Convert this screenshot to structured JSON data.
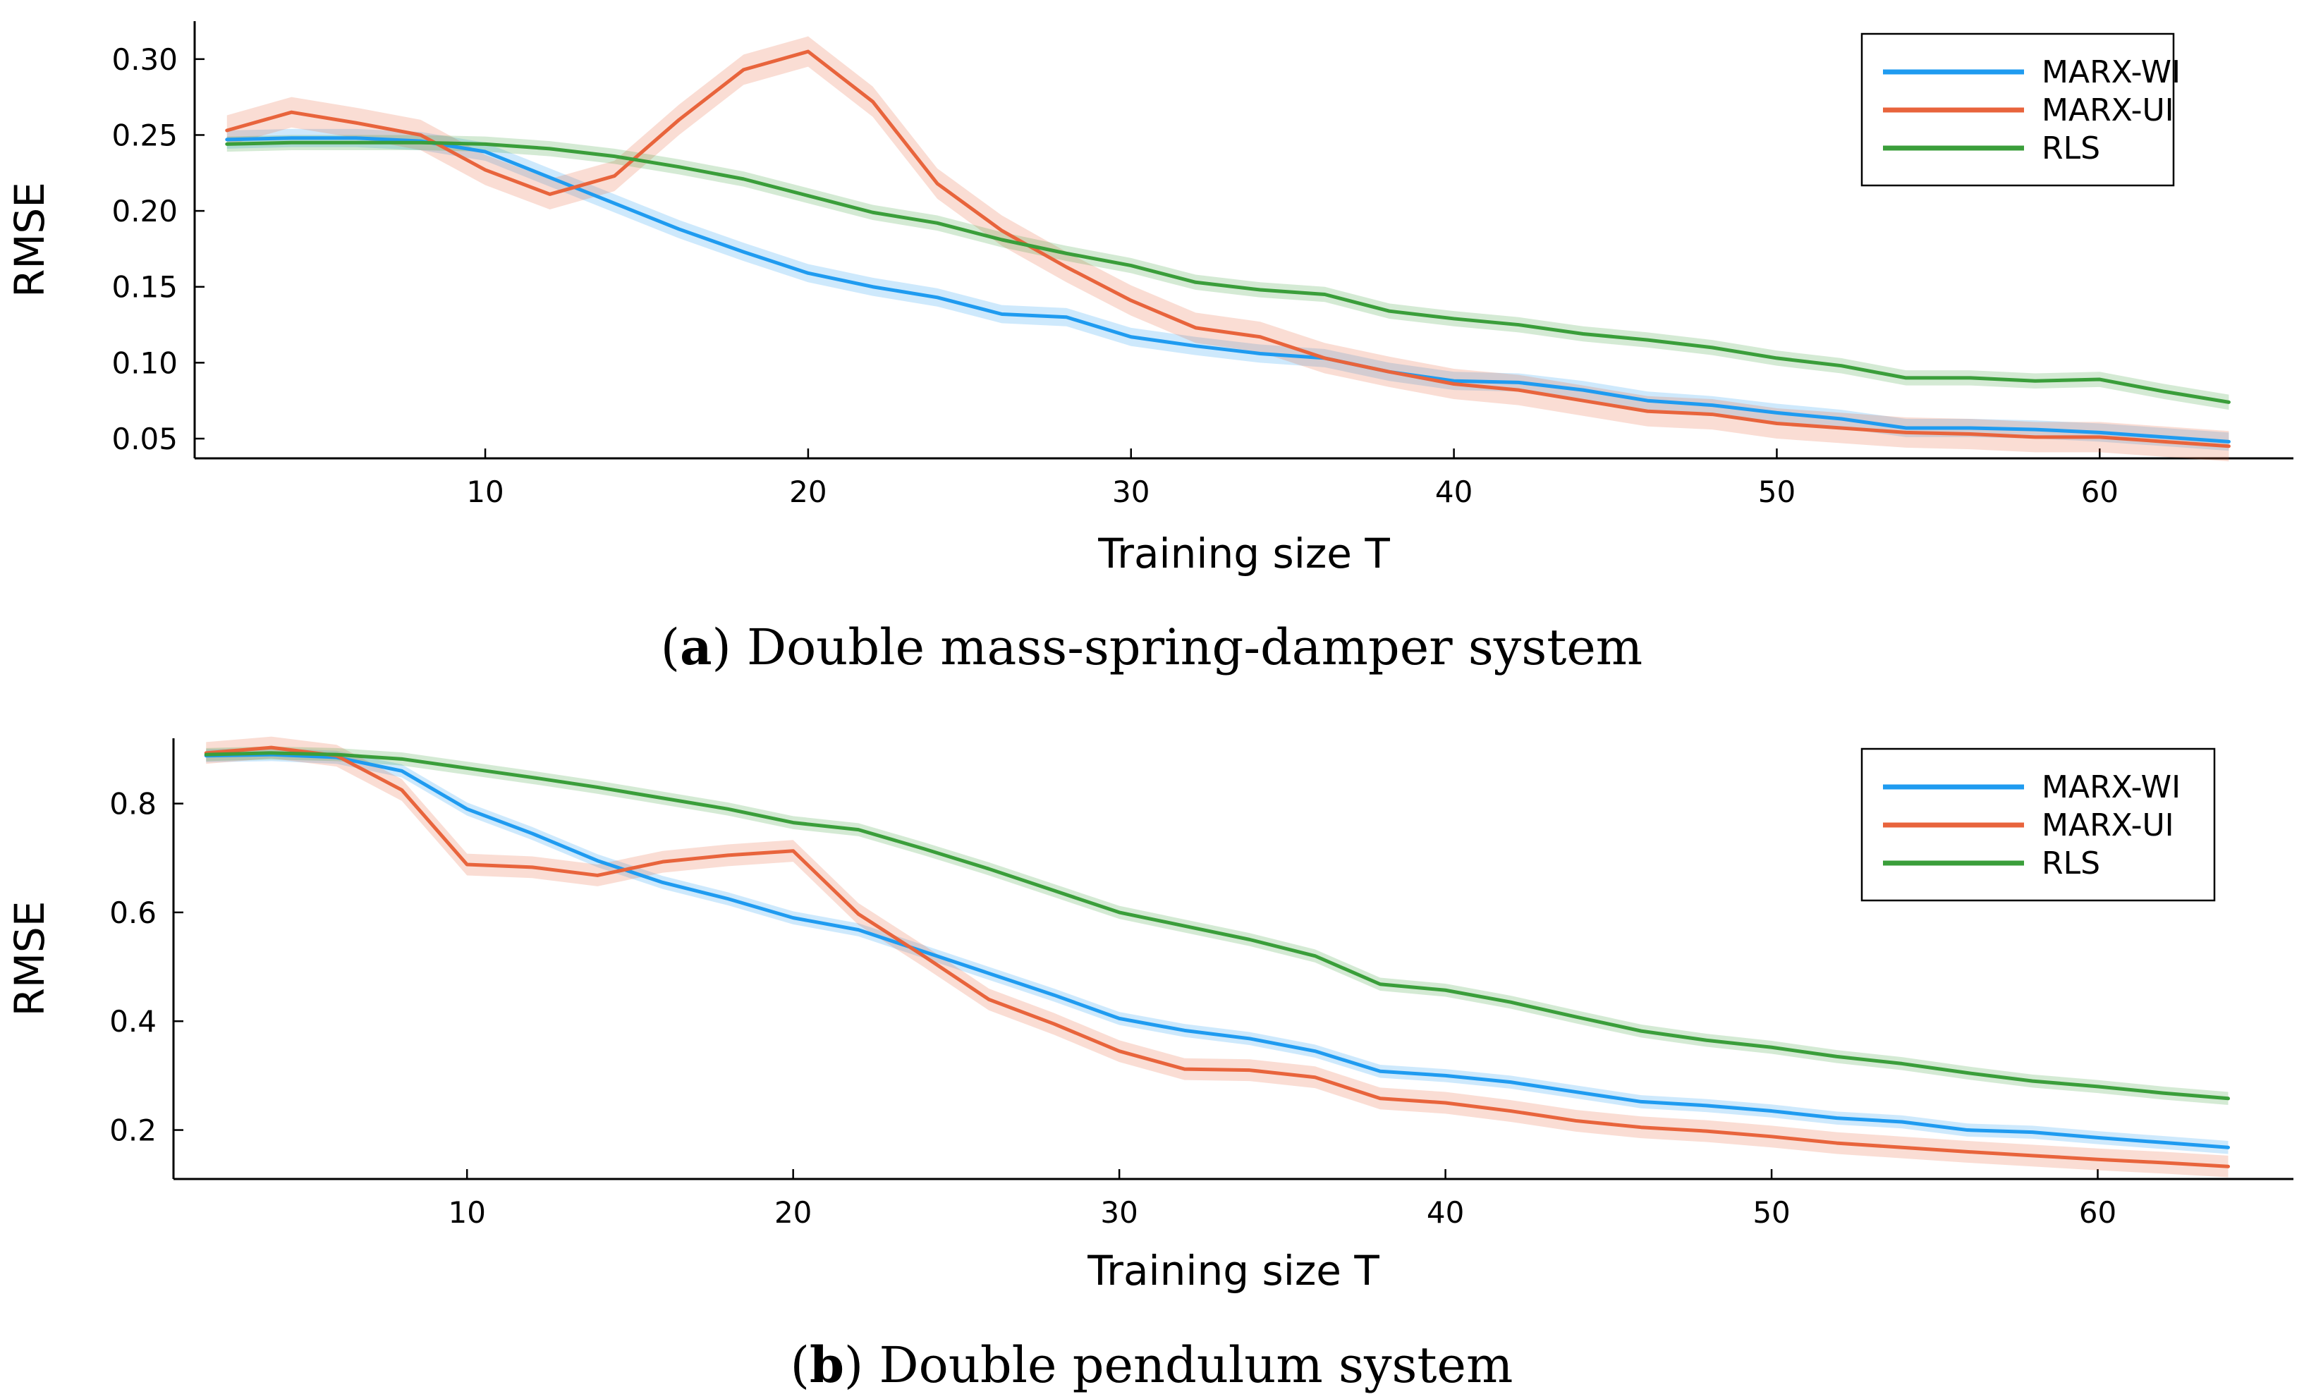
{
  "chart_data": [
    {
      "type": "line",
      "panel_label": "a",
      "title": "Double mass-spring-damper system",
      "xlabel": "Training size T",
      "ylabel": "RMSE",
      "xlim": [
        1,
        66
      ],
      "ylim": [
        0.037,
        0.325
      ],
      "xticks": [
        10,
        20,
        30,
        40,
        50,
        60
      ],
      "yticks": [
        0.05,
        0.1,
        0.15,
        0.2,
        0.25,
        0.3
      ],
      "ytick_labels": [
        "0.05",
        "0.10",
        "0.15",
        "0.20",
        "0.25",
        "0.30"
      ],
      "grid": false,
      "legend_position": "top-right",
      "x": [
        2,
        4,
        6,
        8,
        10,
        12,
        14,
        16,
        18,
        20,
        22,
        24,
        26,
        28,
        30,
        32,
        34,
        36,
        38,
        40,
        42,
        44,
        46,
        48,
        50,
        52,
        54,
        56,
        58,
        60,
        62,
        64
      ],
      "series": [
        {
          "name": "MARX-WI",
          "color": "#1f9bf0",
          "band": 0.006,
          "values": [
            0.247,
            0.248,
            0.248,
            0.246,
            0.239,
            0.222,
            0.205,
            0.188,
            0.173,
            0.159,
            0.15,
            0.143,
            0.132,
            0.13,
            0.117,
            0.111,
            0.106,
            0.103,
            0.094,
            0.088,
            0.087,
            0.082,
            0.075,
            0.072,
            0.067,
            0.063,
            0.057,
            0.057,
            0.056,
            0.054,
            0.051,
            0.048
          ]
        },
        {
          "name": "MARX-UI",
          "color": "#e8643c",
          "band": 0.01,
          "values": [
            0.253,
            0.265,
            0.258,
            0.25,
            0.227,
            0.211,
            0.223,
            0.26,
            0.293,
            0.305,
            0.272,
            0.218,
            0.187,
            0.163,
            0.141,
            0.123,
            0.117,
            0.103,
            0.094,
            0.086,
            0.082,
            0.075,
            0.068,
            0.066,
            0.06,
            0.057,
            0.054,
            0.053,
            0.051,
            0.051,
            0.048,
            0.045
          ]
        },
        {
          "name": "RLS",
          "color": "#3a9e3a",
          "band": 0.005,
          "values": [
            0.244,
            0.245,
            0.245,
            0.245,
            0.244,
            0.241,
            0.236,
            0.229,
            0.221,
            0.21,
            0.199,
            0.192,
            0.181,
            0.172,
            0.164,
            0.153,
            0.148,
            0.145,
            0.134,
            0.129,
            0.125,
            0.119,
            0.115,
            0.11,
            0.103,
            0.098,
            0.09,
            0.09,
            0.088,
            0.089,
            0.081,
            0.074
          ]
        }
      ]
    },
    {
      "type": "line",
      "panel_label": "b",
      "title": "Double pendulum system",
      "xlabel": "Training size T",
      "ylabel": "RMSE",
      "xlim": [
        1,
        66
      ],
      "ylim": [
        0.11,
        0.92
      ],
      "xticks": [
        10,
        20,
        30,
        40,
        50,
        60
      ],
      "yticks": [
        0.2,
        0.4,
        0.6,
        0.8
      ],
      "ytick_labels": [
        "0.2",
        "0.4",
        "0.6",
        "0.8"
      ],
      "grid": false,
      "legend_position": "top-right",
      "x": [
        2,
        4,
        6,
        8,
        10,
        12,
        14,
        16,
        18,
        20,
        22,
        24,
        26,
        28,
        30,
        32,
        34,
        36,
        38,
        40,
        42,
        44,
        46,
        48,
        50,
        52,
        54,
        56,
        58,
        60,
        62,
        64
      ],
      "series": [
        {
          "name": "MARX-WI",
          "color": "#1f9bf0",
          "band": 0.012,
          "values": [
            0.888,
            0.89,
            0.885,
            0.86,
            0.79,
            0.745,
            0.695,
            0.655,
            0.625,
            0.59,
            0.568,
            0.528,
            0.488,
            0.448,
            0.405,
            0.383,
            0.368,
            0.345,
            0.308,
            0.3,
            0.288,
            0.27,
            0.252,
            0.245,
            0.235,
            0.222,
            0.215,
            0.2,
            0.196,
            0.186,
            0.177,
            0.168
          ]
        },
        {
          "name": "MARX-UI",
          "color": "#e8643c",
          "band": 0.02,
          "values": [
            0.893,
            0.903,
            0.888,
            0.825,
            0.688,
            0.683,
            0.668,
            0.693,
            0.705,
            0.713,
            0.597,
            0.52,
            0.44,
            0.395,
            0.345,
            0.312,
            0.31,
            0.297,
            0.258,
            0.25,
            0.235,
            0.217,
            0.205,
            0.198,
            0.188,
            0.176,
            0.168,
            0.16,
            0.153,
            0.146,
            0.14,
            0.133
          ]
        },
        {
          "name": "RLS",
          "color": "#3a9e3a",
          "band": 0.012,
          "values": [
            0.89,
            0.893,
            0.89,
            0.882,
            0.865,
            0.848,
            0.83,
            0.81,
            0.79,
            0.765,
            0.752,
            0.717,
            0.68,
            0.64,
            0.6,
            0.575,
            0.55,
            0.52,
            0.468,
            0.457,
            0.435,
            0.408,
            0.382,
            0.365,
            0.352,
            0.335,
            0.322,
            0.305,
            0.29,
            0.28,
            0.268,
            0.258
          ]
        }
      ]
    }
  ]
}
